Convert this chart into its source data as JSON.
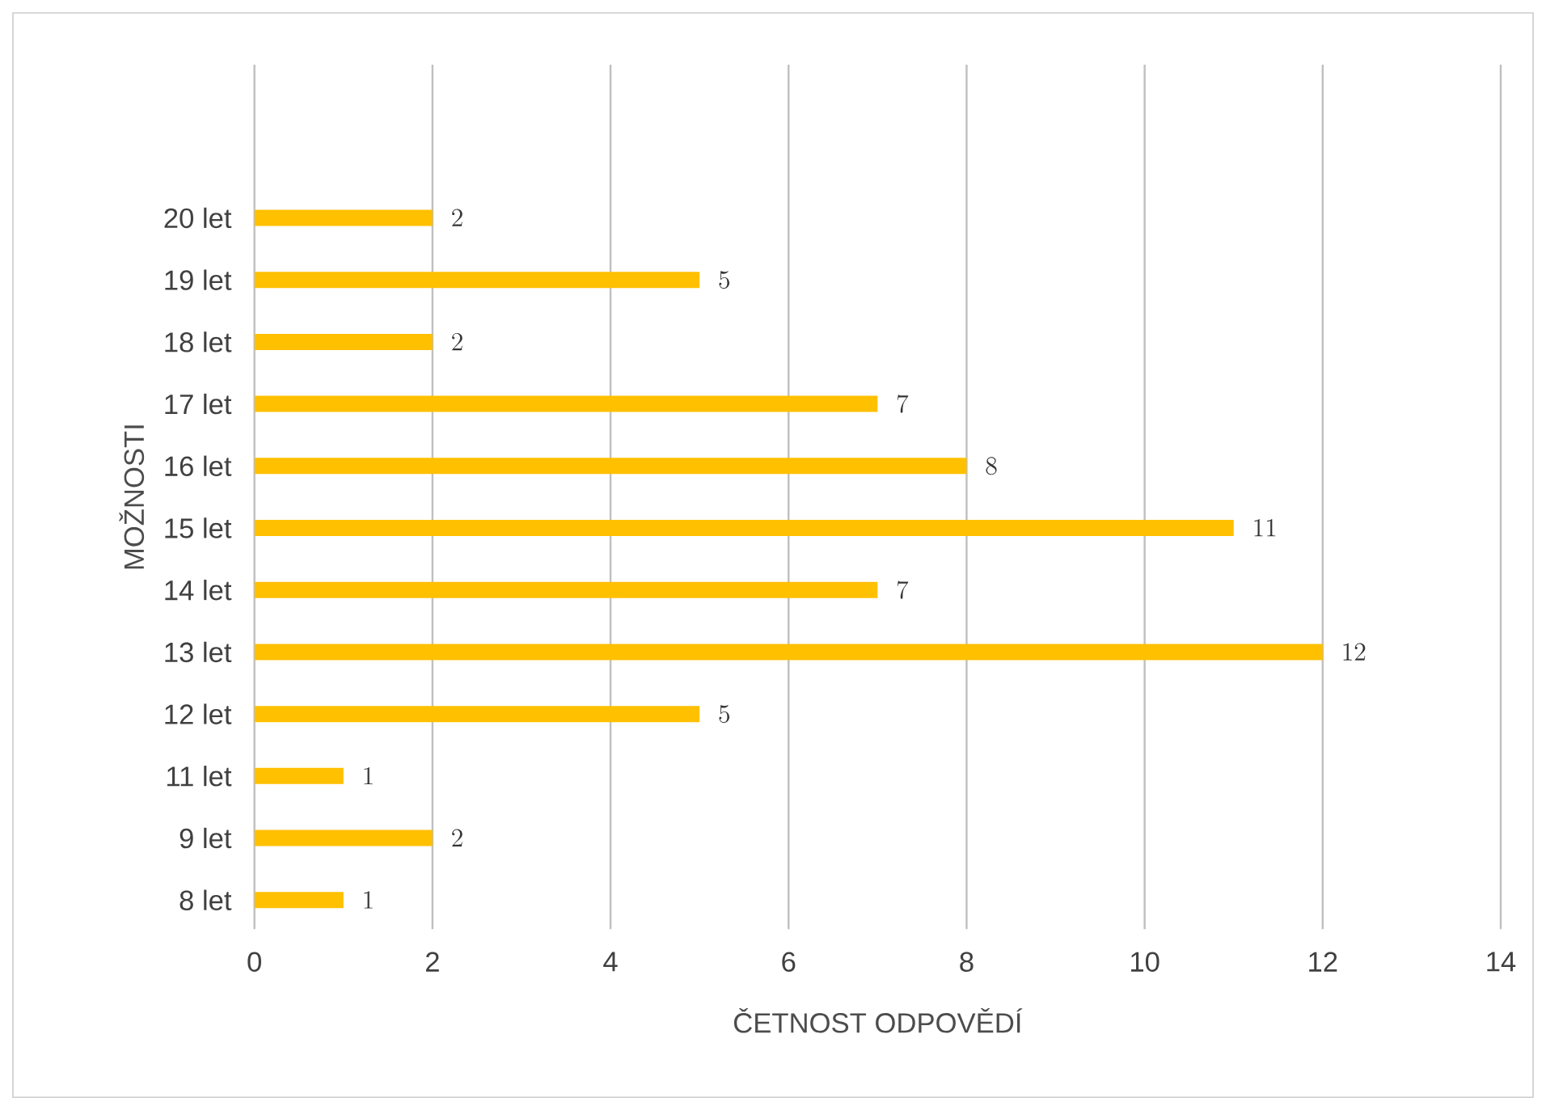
{
  "chart_data": {
    "type": "bar",
    "orientation": "horizontal",
    "xlabel": "ČETNOST ODPOVĚDÍ",
    "ylabel": "MOŽNOSTI",
    "categories": [
      "20 let",
      "19 let",
      "18 let",
      "17 let",
      "16 let",
      "15 let",
      "14 let",
      "13 let",
      "12 let",
      "11 let",
      "9 let",
      "8 let"
    ],
    "values": [
      2,
      5,
      2,
      7,
      8,
      11,
      7,
      12,
      5,
      1,
      2,
      1
    ],
    "color": "#ffc000",
    "xlim": [
      0,
      14
    ],
    "xticks": [
      0,
      2,
      4,
      6,
      8,
      10,
      12,
      14
    ],
    "grid": "x",
    "data_labels": true
  }
}
